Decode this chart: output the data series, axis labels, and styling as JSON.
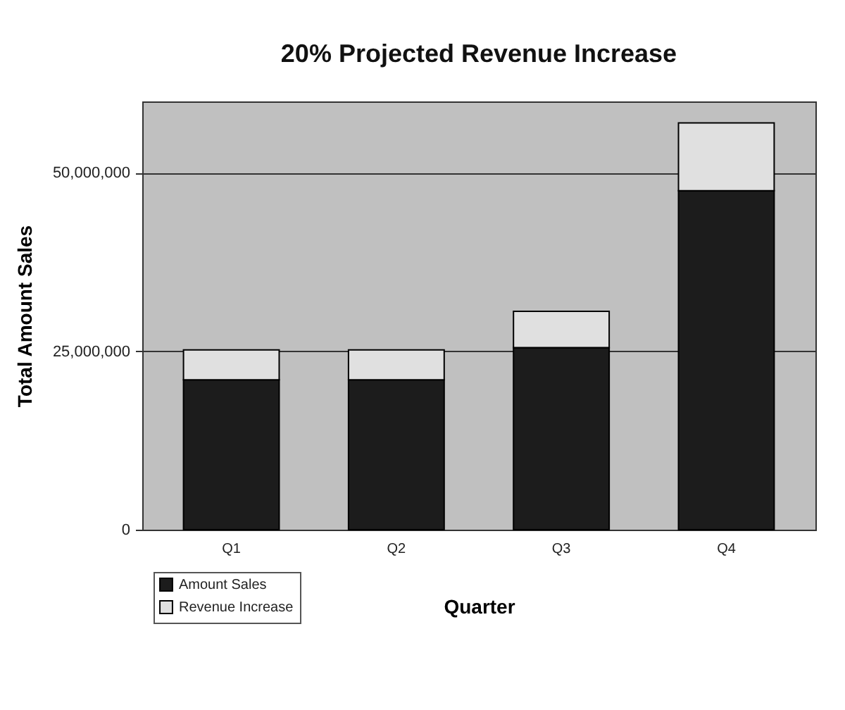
{
  "chart_data": {
    "type": "bar",
    "title": "20% Projected Revenue Increase",
    "xlabel": "Quarter",
    "ylabel": "Total Amount Sales",
    "categories": [
      "Q1",
      "Q2",
      "Q3",
      "Q4"
    ],
    "stacked": true,
    "series": [
      {
        "name": "Amount Sales",
        "color": "#1c1c1c",
        "values": [
          21000000,
          21000000,
          25500000,
          47500000
        ]
      },
      {
        "name": "Revenue Increase",
        "color": "#e0e0e0",
        "values": [
          4200000,
          4200000,
          5100000,
          9500000
        ]
      }
    ],
    "ylim": [
      0,
      60000000
    ],
    "yticks": [
      0,
      {
        "value": 25000000,
        "label": "25,000,000"
      },
      {
        "value": 50000000,
        "label": "50,000,000"
      }
    ],
    "grid": "y",
    "legend": "bottom left"
  }
}
